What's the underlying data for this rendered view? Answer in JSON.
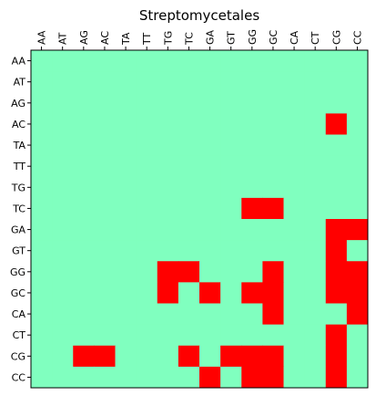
{
  "chart_data": {
    "type": "heatmap",
    "title": "Streptomycetales",
    "xlabel": "",
    "ylabel": "",
    "x_tick_position": "top",
    "columns": [
      "AA",
      "AT",
      "AG",
      "AC",
      "TA",
      "TT",
      "TG",
      "TC",
      "GA",
      "GT",
      "GG",
      "GC",
      "CA",
      "CT",
      "CG",
      "CC"
    ],
    "rows": [
      "AA",
      "AT",
      "AG",
      "AC",
      "TA",
      "TT",
      "TG",
      "TC",
      "GA",
      "GT",
      "GG",
      "GC",
      "CA",
      "CT",
      "CG",
      "CC"
    ],
    "values": [
      [
        0,
        0,
        0,
        0,
        0,
        0,
        0,
        0,
        0,
        0,
        0,
        0,
        0,
        0,
        0,
        0
      ],
      [
        0,
        0,
        0,
        0,
        0,
        0,
        0,
        0,
        0,
        0,
        0,
        0,
        0,
        0,
        0,
        0
      ],
      [
        0,
        0,
        0,
        0,
        0,
        0,
        0,
        0,
        0,
        0,
        0,
        0,
        0,
        0,
        0,
        0
      ],
      [
        0,
        0,
        0,
        0,
        0,
        0,
        0,
        0,
        0,
        0,
        0,
        0,
        0,
        0,
        1,
        0
      ],
      [
        0,
        0,
        0,
        0,
        0,
        0,
        0,
        0,
        0,
        0,
        0,
        0,
        0,
        0,
        0,
        0
      ],
      [
        0,
        0,
        0,
        0,
        0,
        0,
        0,
        0,
        0,
        0,
        0,
        0,
        0,
        0,
        0,
        0
      ],
      [
        0,
        0,
        0,
        0,
        0,
        0,
        0,
        0,
        0,
        0,
        0,
        0,
        0,
        0,
        0,
        0
      ],
      [
        0,
        0,
        0,
        0,
        0,
        0,
        0,
        0,
        0,
        0,
        1,
        1,
        0,
        0,
        0,
        0
      ],
      [
        0,
        0,
        0,
        0,
        0,
        0,
        0,
        0,
        0,
        0,
        0,
        0,
        0,
        0,
        1,
        1
      ],
      [
        0,
        0,
        0,
        0,
        0,
        0,
        0,
        0,
        0,
        0,
        0,
        0,
        0,
        0,
        1,
        0
      ],
      [
        0,
        0,
        0,
        0,
        0,
        0,
        1,
        1,
        0,
        0,
        0,
        1,
        0,
        0,
        1,
        1
      ],
      [
        0,
        0,
        0,
        0,
        0,
        0,
        1,
        0,
        1,
        0,
        1,
        1,
        0,
        0,
        1,
        1
      ],
      [
        0,
        0,
        0,
        0,
        0,
        0,
        0,
        0,
        0,
        0,
        0,
        1,
        0,
        0,
        0,
        1
      ],
      [
        0,
        0,
        0,
        0,
        0,
        0,
        0,
        0,
        0,
        0,
        0,
        0,
        0,
        0,
        1,
        0
      ],
      [
        0,
        0,
        1,
        1,
        0,
        0,
        0,
        1,
        0,
        1,
        1,
        1,
        0,
        0,
        1,
        0
      ],
      [
        0,
        0,
        0,
        0,
        0,
        0,
        0,
        0,
        1,
        0,
        1,
        1,
        0,
        0,
        1,
        0
      ]
    ],
    "colors": {
      "0": "#80ffbf",
      "1": "#ff0000"
    },
    "legend": "none",
    "grid": false
  }
}
